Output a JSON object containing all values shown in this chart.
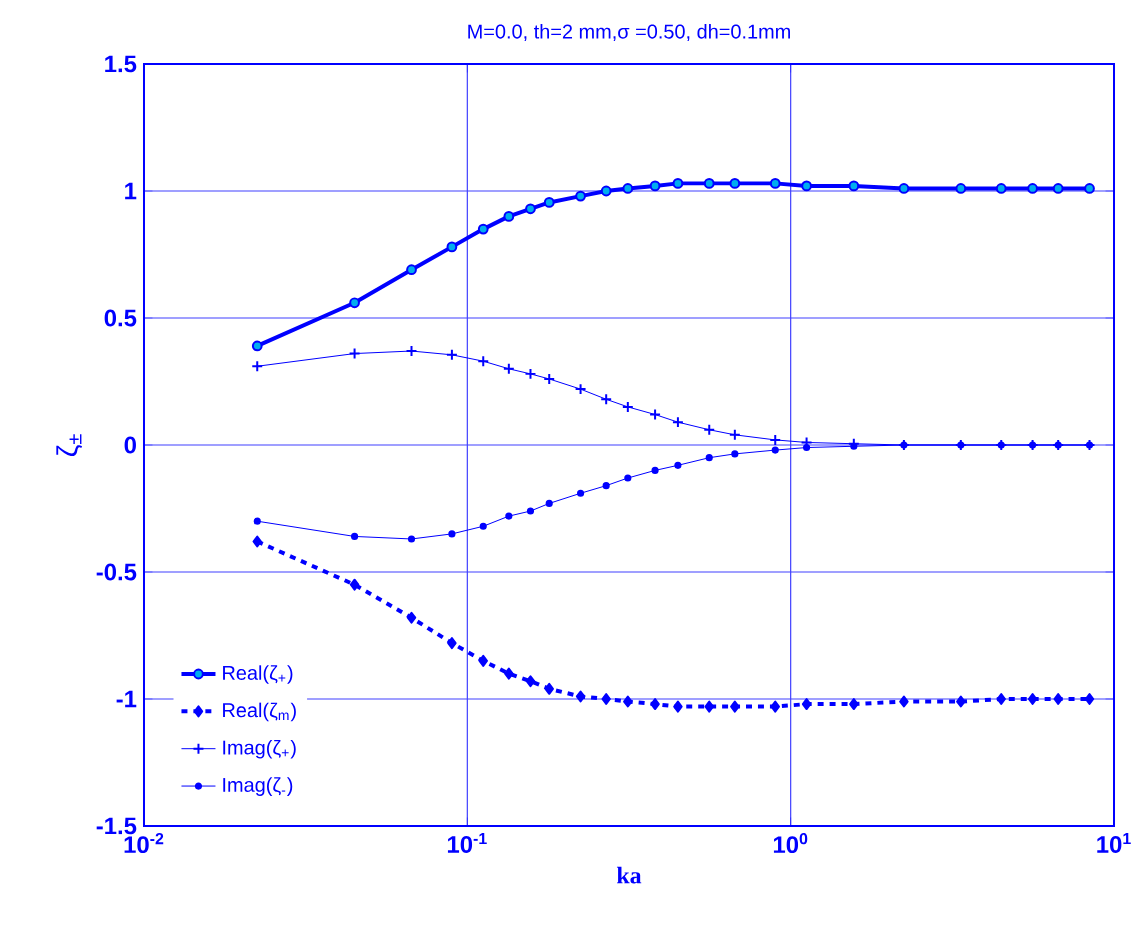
{
  "chart_data": {
    "type": "line",
    "title": "M=0.0, th=2 mm,σ =0.50, dh=0.1mm",
    "xlabel": "ka",
    "ylabel": "ζ$_{±}$",
    "log": "x",
    "grid": true,
    "legend": "bottom left",
    "xlim": [
      0.01,
      10
    ],
    "ylim": [
      -1.5,
      1.5
    ],
    "xticks": [
      {
        "value": 0.01,
        "label": "10$^{-2}$"
      },
      {
        "value": 0.1,
        "label": "10$^{-1}$"
      },
      {
        "value": 1,
        "label": "10$^{0}$"
      },
      {
        "value": 10,
        "label": "10$^{1}$"
      }
    ],
    "yticks": [
      -1.5,
      -1,
      -0.5,
      0,
      0.5,
      1,
      1.5
    ],
    "x": [
      0.0224,
      0.0448,
      0.0672,
      0.0896,
      0.112,
      0.1344,
      0.1568,
      0.1792,
      0.224,
      0.2688,
      0.3136,
      0.3808,
      0.448,
      0.56,
      0.672,
      0.896,
      1.12,
      1.568,
      2.24,
      3.36,
      4.48,
      5.6,
      6.72,
      8.4
    ],
    "series": [
      {
        "name": "Real(ζ$_{+}$)",
        "color": "#0000ff",
        "marker": "circle",
        "line_style": "solid",
        "values": [
          0.39,
          0.56,
          0.69,
          0.78,
          0.85,
          0.9,
          0.93,
          0.955,
          0.98,
          1.0,
          1.01,
          1.02,
          1.03,
          1.03,
          1.03,
          1.03,
          1.02,
          1.02,
          1.01,
          1.01,
          1.01,
          1.01,
          1.01,
          1.01
        ]
      },
      {
        "name": "Real(ζ$_{m}$)",
        "color": "#0000ff",
        "marker": "diamond",
        "line_style": "dashed",
        "values": [
          -0.38,
          -0.55,
          -0.68,
          -0.78,
          -0.85,
          -0.9,
          -0.93,
          -0.96,
          -0.99,
          -1.0,
          -1.01,
          -1.02,
          -1.03,
          -1.03,
          -1.03,
          -1.03,
          -1.02,
          -1.02,
          -1.01,
          -1.01,
          -1.0,
          -1.0,
          -1.0,
          -1.0
        ]
      },
      {
        "name": "Imag(ζ$_{+}$)",
        "color": "#0000ff",
        "marker": "cross",
        "line_style": "solid",
        "values": [
          0.31,
          0.36,
          0.37,
          0.355,
          0.33,
          0.3,
          0.28,
          0.26,
          0.22,
          0.18,
          0.15,
          0.12,
          0.09,
          0.06,
          0.04,
          0.02,
          0.01,
          0.005,
          0,
          0,
          0,
          0,
          0,
          0
        ]
      },
      {
        "name": "Imag(ζ$_{-}$)",
        "color": "#0000ff",
        "marker": "circle",
        "line_style": "solid",
        "values": [
          -0.3,
          -0.36,
          -0.37,
          -0.35,
          -0.32,
          -0.28,
          -0.26,
          -0.23,
          -0.19,
          -0.16,
          -0.13,
          -0.1,
          -0.08,
          -0.05,
          -0.035,
          -0.02,
          -0.01,
          -0.005,
          0,
          0,
          0,
          0,
          0,
          0
        ]
      }
    ]
  }
}
